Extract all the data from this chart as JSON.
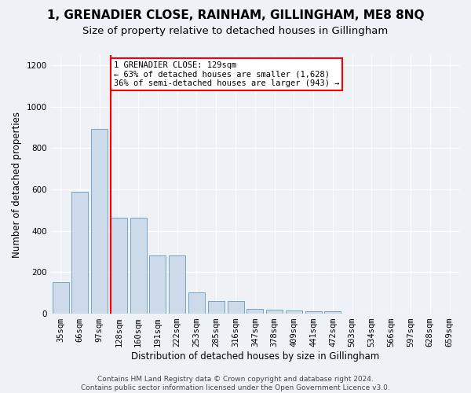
{
  "title": "1, GRENADIER CLOSE, RAINHAM, GILLINGHAM, ME8 8NQ",
  "subtitle": "Size of property relative to detached houses in Gillingham",
  "xlabel": "Distribution of detached houses by size in Gillingham",
  "ylabel": "Number of detached properties",
  "bar_labels": [
    "35sqm",
    "66sqm",
    "97sqm",
    "128sqm",
    "160sqm",
    "191sqm",
    "222sqm",
    "253sqm",
    "285sqm",
    "316sqm",
    "347sqm",
    "378sqm",
    "409sqm",
    "441sqm",
    "472sqm",
    "503sqm",
    "534sqm",
    "566sqm",
    "597sqm",
    "628sqm",
    "659sqm"
  ],
  "bar_values": [
    152,
    590,
    893,
    465,
    465,
    283,
    283,
    103,
    62,
    62,
    25,
    18,
    15,
    12,
    11,
    0,
    0,
    0,
    0,
    0,
    0
  ],
  "bar_color": "#ccdaea",
  "bar_edge_color": "#6699bb",
  "background_color": "#eef2f7",
  "grid_color": "#ffffff",
  "vline_color": "red",
  "annotation_text": "1 GRENADIER CLOSE: 129sqm\n← 63% of detached houses are smaller (1,628)\n36% of semi-detached houses are larger (943) →",
  "annotation_box_facecolor": "white",
  "annotation_box_edgecolor": "red",
  "ylim": [
    0,
    1250
  ],
  "yticks": [
    0,
    200,
    400,
    600,
    800,
    1000,
    1200
  ],
  "footer": "Contains HM Land Registry data © Crown copyright and database right 2024.\nContains public sector information licensed under the Open Government Licence v3.0.",
  "title_fontsize": 11,
  "subtitle_fontsize": 9.5,
  "xlabel_fontsize": 8.5,
  "ylabel_fontsize": 8.5,
  "tick_fontsize": 7.5,
  "annot_fontsize": 7.5,
  "footer_fontsize": 6.5
}
